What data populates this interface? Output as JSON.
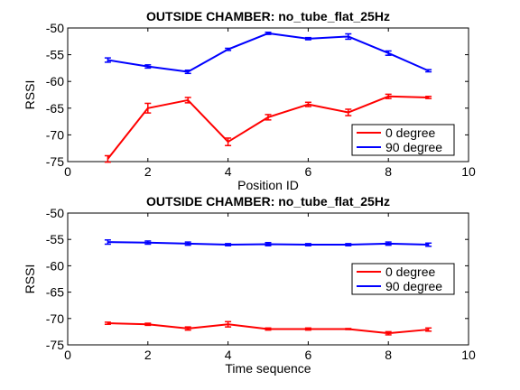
{
  "chart_data": [
    {
      "type": "line",
      "title": "OUTSIDE CHAMBER: no_tube_flat_25Hz",
      "xlabel": "Position ID",
      "ylabel": "RSSI",
      "xlim": [
        0,
        10
      ],
      "ylim": [
        -75,
        -50
      ],
      "xticks": [
        0,
        2,
        4,
        6,
        8,
        10
      ],
      "yticks": [
        -50,
        -55,
        -60,
        -65,
        -70,
        -75
      ],
      "error_bars": true,
      "legend_position": "lower-right",
      "x": [
        1,
        2,
        3,
        4,
        5,
        6,
        7,
        8,
        9
      ],
      "series": [
        {
          "name": "0 degree",
          "color": "#ff0000",
          "values": [
            -74.5,
            -65.0,
            -63.5,
            -71.3,
            -66.7,
            -64.3,
            -65.8,
            -62.8,
            -63.0
          ],
          "errors": [
            0.6,
            0.9,
            0.5,
            0.7,
            0.5,
            0.4,
            0.6,
            0.4,
            0.2
          ]
        },
        {
          "name": "90 degree",
          "color": "#0000ff",
          "values": [
            -56.0,
            -57.2,
            -58.2,
            -54.0,
            -51.0,
            -52.0,
            -51.6,
            -54.7,
            -58.0
          ],
          "errors": [
            0.4,
            0.3,
            0.3,
            0.2,
            0.2,
            0.2,
            0.5,
            0.4,
            0.2
          ]
        }
      ]
    },
    {
      "type": "line",
      "title": "OUTSIDE CHAMBER: no_tube_flat_25Hz",
      "xlabel": "Time sequence",
      "ylabel": "RSSI",
      "xlim": [
        0,
        10
      ],
      "ylim": [
        -75,
        -50
      ],
      "xticks": [
        0,
        2,
        4,
        6,
        8,
        10
      ],
      "yticks": [
        -50,
        -55,
        -60,
        -65,
        -70,
        -75
      ],
      "error_bars": true,
      "legend_position": "right",
      "x": [
        1,
        2,
        3,
        4,
        5,
        6,
        7,
        8,
        9
      ],
      "series": [
        {
          "name": "0 degree",
          "color": "#ff0000",
          "values": [
            -70.9,
            -71.1,
            -71.9,
            -71.1,
            -72.0,
            -72.0,
            -72.0,
            -72.8,
            -72.1
          ],
          "errors": [
            0.2,
            0.2,
            0.3,
            0.5,
            0.2,
            0.2,
            0.1,
            0.3,
            0.3
          ]
        },
        {
          "name": "90 degree",
          "color": "#0000ff",
          "values": [
            -55.5,
            -55.6,
            -55.8,
            -56.0,
            -55.9,
            -56.0,
            -56.0,
            -55.8,
            -56.0
          ],
          "errors": [
            0.4,
            0.3,
            0.3,
            0.2,
            0.3,
            0.2,
            0.2,
            0.3,
            0.3
          ]
        }
      ]
    }
  ]
}
